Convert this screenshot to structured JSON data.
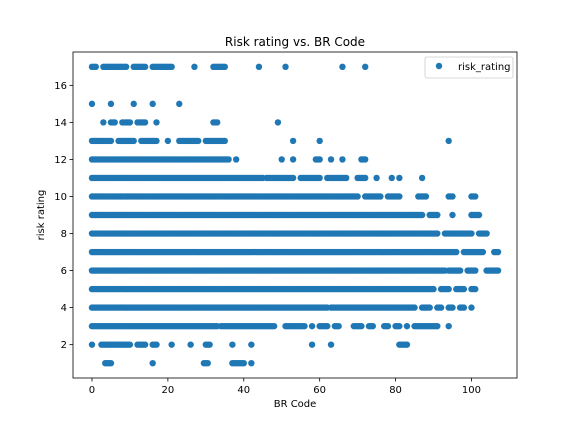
{
  "chart_data": {
    "type": "scatter",
    "title": "Risk rating vs. BR Code",
    "xlabel": "BR Code",
    "ylabel": "risk rating",
    "xlim": [
      -5,
      112
    ],
    "ylim": [
      0.2,
      17.8
    ],
    "xticks": [
      0,
      20,
      40,
      60,
      80,
      100
    ],
    "yticks": [
      2,
      4,
      6,
      8,
      10,
      12,
      14,
      16
    ],
    "grid": false,
    "legend_position": "top-right",
    "series": [
      {
        "name": "risk_rating",
        "color": "#1f77b4",
        "marker": "circle",
        "rows": [
          {
            "y": 1,
            "segments": [
              [
                3.5,
                5
              ],
              [
                16,
                16
              ],
              [
                29.5,
                30.5
              ],
              [
                37,
                40
              ],
              [
                42,
                42
              ]
            ]
          },
          {
            "y": 2,
            "segments": [
              [
                0,
                0
              ],
              [
                2.5,
                10
              ],
              [
                12,
                14
              ],
              [
                16,
                17
              ],
              [
                21,
                21
              ],
              [
                26,
                26
              ],
              [
                30,
                31
              ],
              [
                37,
                37
              ],
              [
                42,
                42
              ],
              [
                58,
                58
              ],
              [
                63,
                63
              ],
              [
                81,
                83
              ]
            ]
          },
          {
            "y": 3,
            "segments": [
              [
                0,
                33
              ],
              [
                34,
                48
              ],
              [
                51,
                56
              ],
              [
                58,
                58
              ],
              [
                60,
                62
              ],
              [
                64,
                65
              ],
              [
                69,
                71
              ],
              [
                73,
                74
              ],
              [
                77,
                78
              ],
              [
                80,
                81
              ],
              [
                83,
                83
              ],
              [
                85,
                91
              ],
              [
                94,
                94
              ]
            ]
          },
          {
            "y": 4,
            "segments": [
              [
                0,
                62
              ],
              [
                63,
                85
              ],
              [
                87,
                89
              ],
              [
                91,
                92
              ],
              [
                94,
                95
              ],
              [
                97,
                98
              ],
              [
                100,
                100
              ]
            ]
          },
          {
            "y": 5,
            "segments": [
              [
                0,
                90
              ],
              [
                92,
                94
              ],
              [
                96,
                98
              ],
              [
                100,
                101
              ]
            ]
          },
          {
            "y": 6,
            "segments": [
              [
                0,
                93
              ],
              [
                94,
                97
              ],
              [
                99,
                101
              ],
              [
                104,
                107
              ]
            ]
          },
          {
            "y": 7,
            "segments": [
              [
                0,
                96
              ],
              [
                98,
                103
              ],
              [
                106,
                107
              ]
            ]
          },
          {
            "y": 8,
            "segments": [
              [
                0,
                91
              ],
              [
                93,
                100
              ],
              [
                102,
                104
              ]
            ]
          },
          {
            "y": 9,
            "segments": [
              [
                0,
                87
              ],
              [
                89,
                91
              ],
              [
                95,
                95
              ],
              [
                100,
                102
              ]
            ]
          },
          {
            "y": 10,
            "segments": [
              [
                0,
                70
              ],
              [
                72,
                76
              ],
              [
                78,
                81
              ],
              [
                86,
                88
              ],
              [
                94,
                95
              ],
              [
                100,
                101
              ]
            ]
          },
          {
            "y": 11,
            "segments": [
              [
                0,
                45
              ],
              [
                46,
                53
              ],
              [
                55,
                60
              ],
              [
                62,
                67
              ],
              [
                70,
                72
              ],
              [
                75,
                75
              ],
              [
                79,
                79
              ],
              [
                81,
                81
              ],
              [
                87,
                87
              ]
            ]
          },
          {
            "y": 12,
            "segments": [
              [
                0,
                36
              ],
              [
                38,
                38
              ],
              [
                50,
                50
              ],
              [
                53,
                53
              ],
              [
                59,
                60
              ],
              [
                63,
                63
              ],
              [
                66,
                66
              ],
              [
                71,
                72
              ]
            ]
          },
          {
            "y": 13,
            "segments": [
              [
                0,
                5
              ],
              [
                7,
                11
              ],
              [
                13,
                17
              ],
              [
                20,
                20
              ],
              [
                23,
                28
              ],
              [
                30,
                35
              ],
              [
                53,
                53
              ],
              [
                60,
                60
              ],
              [
                94,
                94
              ]
            ]
          },
          {
            "y": 14,
            "segments": [
              [
                3,
                3
              ],
              [
                5,
                6
              ],
              [
                8,
                10
              ],
              [
                12,
                14
              ],
              [
                17,
                17
              ],
              [
                32,
                33
              ],
              [
                49,
                49
              ]
            ]
          },
          {
            "y": 15,
            "segments": [
              [
                0,
                0
              ],
              [
                5,
                5
              ],
              [
                11,
                11
              ],
              [
                16,
                16
              ],
              [
                23,
                23
              ]
            ]
          },
          {
            "y": 17,
            "segments": [
              [
                0,
                1
              ],
              [
                3,
                9
              ],
              [
                11,
                14
              ],
              [
                16,
                21
              ],
              [
                27,
                27
              ],
              [
                32,
                35
              ],
              [
                44,
                44
              ],
              [
                51,
                51
              ],
              [
                66,
                66
              ],
              [
                72,
                72
              ]
            ]
          }
        ]
      }
    ]
  }
}
